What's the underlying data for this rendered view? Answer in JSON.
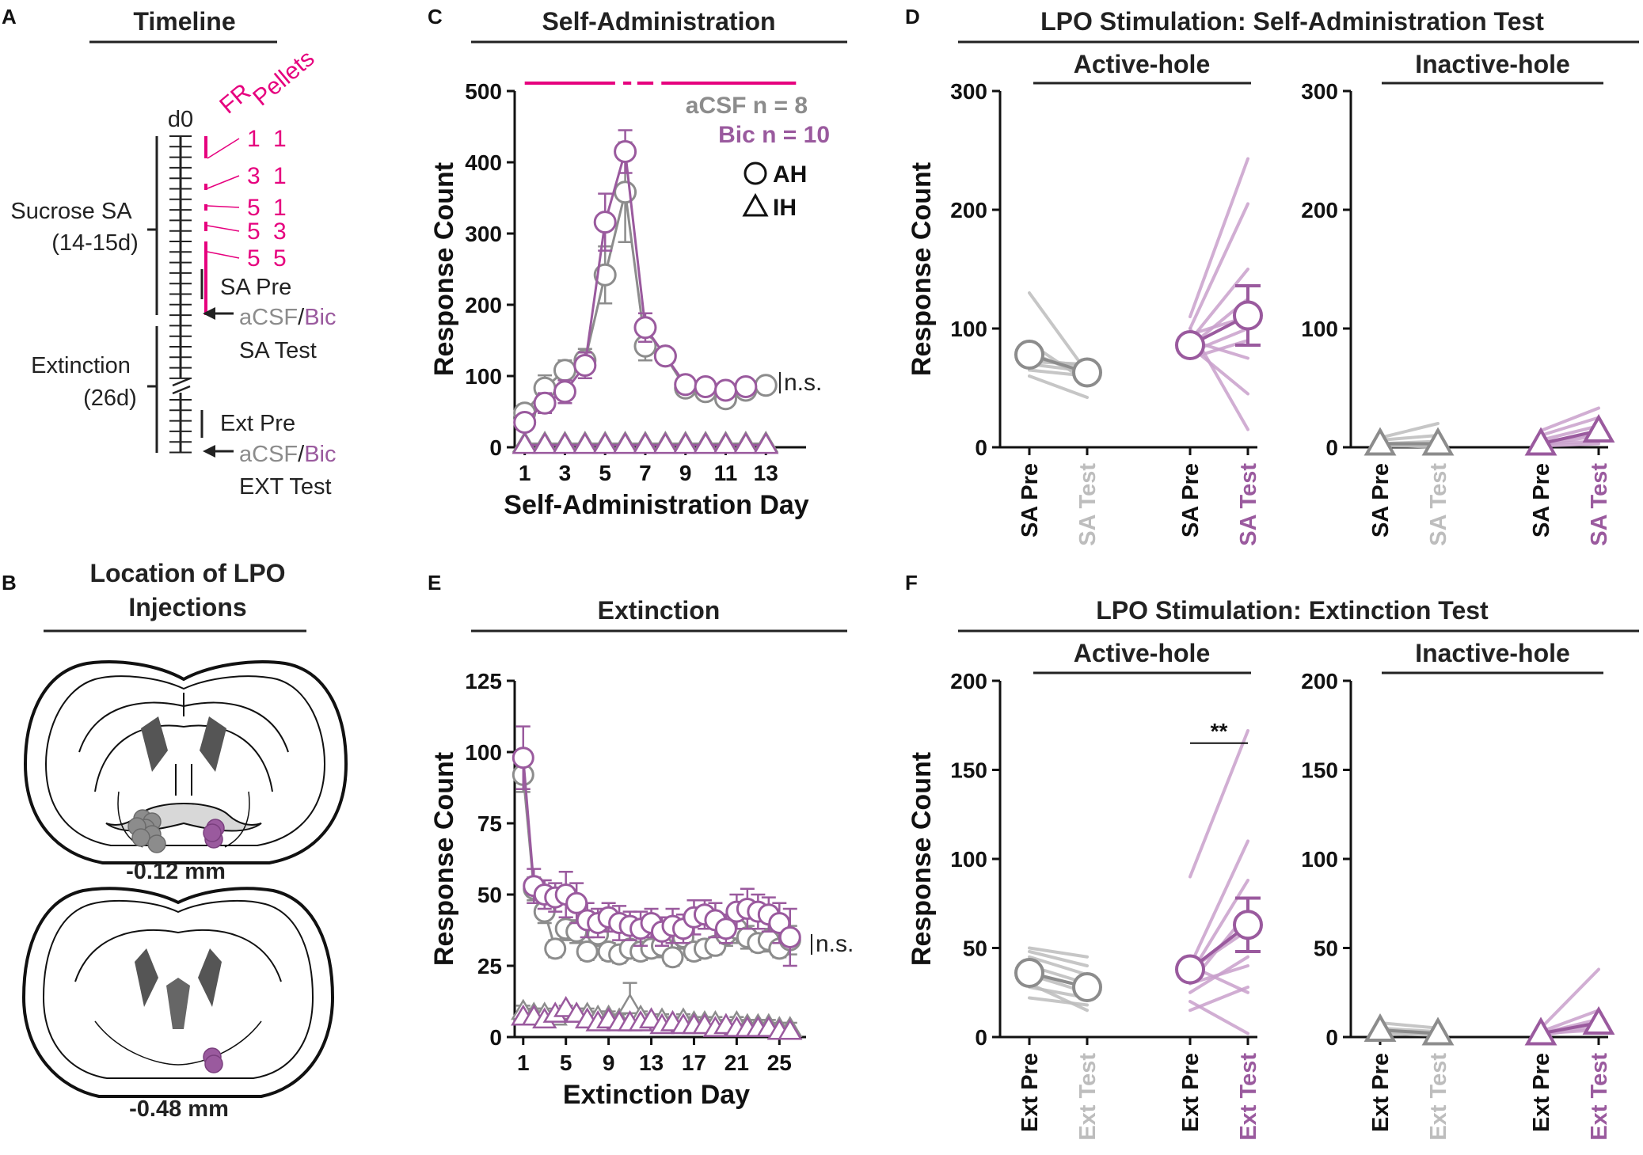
{
  "colors": {
    "acsf": "#8c8c8c",
    "bic": "#9a5a9e",
    "acsf_light": "#bdbdbd",
    "bic_light": "#c9a0cc",
    "magenta": "#e6007e",
    "black": "#111111"
  },
  "panels": {
    "A": {
      "letter": "A",
      "title": "Timeline",
      "d0": "d0",
      "fr_header": "FR",
      "pellets_header": "Pellets",
      "schedule": [
        {
          "fr": "1",
          "pellets": "1"
        },
        {
          "fr": "3",
          "pellets": "1"
        },
        {
          "fr": "5",
          "pellets": "1"
        },
        {
          "fr": "5",
          "pellets": "3"
        },
        {
          "fr": "5",
          "pellets": "5"
        }
      ],
      "sucrose_label": "Sucrose SA",
      "sucrose_duration": "(14-15d)",
      "extinction_label": "Extinction",
      "extinction_duration": "(26d)",
      "sa_pre": "SA Pre",
      "ext_pre": "Ext Pre",
      "acsf": "aCSF",
      "slash": "/",
      "bic": "Bic",
      "sa_test": "SA Test",
      "ext_test": "EXT Test"
    },
    "B": {
      "letter": "B",
      "title_line1": "Location of LPO",
      "title_line2": "Injections",
      "section1": "-0.12 mm",
      "section2": "-0.48 mm"
    },
    "C": {
      "letter": "C",
      "title": "Self-Administration",
      "acsf_n": "aCSF  n = 8",
      "bic_n": "Bic  n = 10",
      "legend_ah": "AH",
      "legend_ih": "IH",
      "ns": "n.s."
    },
    "D": {
      "letter": "D",
      "title": "LPO Stimulation: Self-Administration Test",
      "sub_active": "Active-hole",
      "sub_inactive": "Inactive-hole",
      "pre_label": "SA Pre",
      "test_label": "SA Test"
    },
    "E": {
      "letter": "E",
      "title": "Extinction",
      "ns": "n.s."
    },
    "F": {
      "letter": "F",
      "title": "LPO Stimulation: Extinction Test",
      "sub_active": "Active-hole",
      "sub_inactive": "Inactive-hole",
      "pre_label": "Ext Pre",
      "test_label": "Ext Test",
      "significance": "**"
    }
  },
  "chart_data": [
    {
      "id": "C",
      "type": "line",
      "title": "Self-Administration",
      "xlabel": "Self-Administration Day",
      "ylabel": "Response Count",
      "xlim": [
        0.5,
        15
      ],
      "ylim": [
        0,
        500
      ],
      "yticks": [
        0,
        100,
        200,
        300,
        400,
        500
      ],
      "xticks": [
        1,
        3,
        5,
        7,
        9,
        11,
        13
      ],
      "series": [
        {
          "name": "aCSF AH",
          "group": "acsf",
          "marker": "circle",
          "x": [
            1,
            2,
            3,
            4,
            5,
            6,
            7,
            8,
            9,
            10,
            11,
            12,
            13
          ],
          "values": [
            48,
            83,
            108,
            122,
            242,
            358,
            142,
            128,
            83,
            78,
            68,
            80,
            87
          ],
          "sem": [
            12,
            18,
            14,
            16,
            40,
            70,
            20,
            10,
            8,
            8,
            8,
            8,
            8
          ]
        },
        {
          "name": "Bic AH",
          "group": "bic",
          "marker": "circle",
          "x": [
            1,
            2,
            3,
            4,
            5,
            6,
            7,
            8,
            9,
            10,
            11,
            12
          ],
          "values": [
            35,
            62,
            78,
            115,
            316,
            415,
            168,
            128,
            88,
            85,
            80,
            85
          ],
          "sem": [
            10,
            14,
            16,
            18,
            40,
            30,
            20,
            10,
            8,
            6,
            8,
            8
          ]
        },
        {
          "name": "aCSF IH",
          "group": "acsf",
          "marker": "triangle",
          "x": [
            1,
            2,
            3,
            4,
            5,
            6,
            7,
            8,
            9,
            10,
            11,
            12,
            13
          ],
          "values": [
            5,
            5,
            5,
            5,
            5,
            5,
            5,
            5,
            5,
            5,
            5,
            5,
            5
          ]
        },
        {
          "name": "Bic IH",
          "group": "bic",
          "marker": "triangle",
          "x": [
            1,
            2,
            3,
            4,
            5,
            6,
            7,
            8,
            9,
            10,
            11,
            12,
            13
          ],
          "values": [
            3,
            3,
            3,
            3,
            3,
            3,
            3,
            3,
            3,
            3,
            3,
            3,
            3
          ]
        }
      ],
      "schedule_bar": [
        [
          1,
          5.5
        ],
        [
          5.9,
          6.3
        ],
        [
          6.6,
          7.4
        ],
        [
          7.8,
          14.5
        ]
      ]
    },
    {
      "id": "E",
      "type": "line",
      "title": "Extinction",
      "xlabel": "Extinction Day",
      "ylabel": "Response Count",
      "xlim": [
        0.2,
        27.5
      ],
      "ylim": [
        0,
        125
      ],
      "yticks": [
        0,
        25,
        50,
        75,
        100,
        125
      ],
      "xticks": [
        1,
        5,
        9,
        13,
        17,
        21,
        25
      ],
      "series": [
        {
          "name": "aCSF AH",
          "group": "acsf",
          "marker": "circle",
          "x": [
            1,
            2,
            3,
            4,
            5,
            6,
            7,
            8,
            9,
            10,
            11,
            12,
            13,
            14,
            15,
            16,
            17,
            18,
            19,
            20,
            21,
            22,
            23,
            24,
            25,
            26
          ],
          "values": [
            92,
            52,
            44,
            31,
            38,
            37,
            30,
            36,
            30,
            29,
            31,
            30,
            31,
            32,
            28,
            35,
            30,
            31,
            32,
            36,
            38,
            35,
            33,
            34,
            31,
            34
          ],
          "sem": [
            6,
            4,
            4,
            3,
            4,
            4,
            3,
            4,
            3,
            3,
            3,
            3,
            3,
            4,
            3,
            4,
            3,
            3,
            3,
            4,
            5,
            4,
            3,
            4,
            3,
            5
          ]
        },
        {
          "name": "Bic AH",
          "group": "bic",
          "marker": "circle",
          "x": [
            1,
            2,
            3,
            4,
            5,
            6,
            7,
            8,
            9,
            10,
            11,
            12,
            13,
            14,
            15,
            16,
            17,
            18,
            19,
            20,
            21,
            22,
            23,
            24,
            25,
            26
          ],
          "values": [
            98,
            53,
            50,
            49,
            50,
            47,
            41,
            40,
            42,
            40,
            39,
            38,
            40,
            37,
            39,
            38,
            42,
            43,
            41,
            38,
            44,
            45,
            44,
            43,
            40,
            35
          ],
          "sem": [
            11,
            6,
            5,
            5,
            8,
            7,
            6,
            5,
            5,
            6,
            5,
            6,
            5,
            5,
            6,
            5,
            6,
            5,
            6,
            5,
            6,
            7,
            6,
            6,
            7,
            10
          ]
        },
        {
          "name": "aCSF IH",
          "group": "acsf",
          "marker": "triangle",
          "x": [
            1,
            2,
            3,
            4,
            5,
            6,
            7,
            8,
            9,
            10,
            11,
            12,
            13,
            14,
            15,
            16,
            17,
            18,
            19,
            20,
            21,
            22,
            23,
            24,
            25,
            26
          ],
          "values": [
            9,
            8,
            8,
            7,
            9,
            8,
            8,
            7,
            7,
            6,
            11,
            7,
            6,
            6,
            5,
            6,
            5,
            5,
            5,
            4,
            5,
            4,
            4,
            4,
            3,
            3
          ],
          "sem": [
            2,
            2,
            2,
            2,
            2,
            2,
            2,
            2,
            2,
            2,
            8,
            2,
            2,
            2,
            2,
            2,
            2,
            2,
            2,
            2,
            2,
            2,
            2,
            2,
            2,
            2
          ]
        },
        {
          "name": "Bic IH",
          "group": "bic",
          "marker": "triangle",
          "x": [
            1,
            2,
            3,
            4,
            5,
            6,
            7,
            8,
            9,
            10,
            11,
            12,
            13,
            14,
            15,
            16,
            17,
            18,
            19,
            20,
            21,
            22,
            23,
            24,
            25,
            26
          ],
          "values": [
            7,
            7,
            6,
            8,
            10,
            8,
            6,
            5,
            6,
            5,
            5,
            5,
            6,
            4,
            5,
            4,
            4,
            4,
            3,
            4,
            3,
            3,
            3,
            3,
            2,
            2
          ]
        }
      ]
    },
    {
      "id": "D-active",
      "type": "line",
      "title": "Active-hole",
      "ylabel": "Response Count",
      "ylim": [
        0,
        300
      ],
      "yticks": [
        0,
        100,
        200,
        300
      ],
      "categories": [
        "SA Pre",
        "SA Test",
        "SA Pre",
        "SA Test"
      ],
      "groups": [
        {
          "group": "acsf",
          "pre": 78,
          "test": 63,
          "individual": [
            [
              130,
              63
            ],
            [
              88,
              55
            ],
            [
              80,
              60
            ],
            [
              72,
              70
            ],
            [
              75,
              68
            ],
            [
              70,
              64
            ],
            [
              65,
              60
            ],
            [
              60,
              42
            ]
          ]
        },
        {
          "group": "bic",
          "pre": 86,
          "test": 111,
          "test_sem": 25,
          "individual": [
            [
              110,
              243
            ],
            [
              100,
              205
            ],
            [
              90,
              150
            ],
            [
              85,
              125
            ],
            [
              95,
              110
            ],
            [
              80,
              100
            ],
            [
              75,
              90
            ],
            [
              90,
              75
            ],
            [
              85,
              45
            ],
            [
              100,
              15
            ]
          ]
        }
      ]
    },
    {
      "id": "D-inactive",
      "type": "line",
      "title": "Inactive-hole",
      "ylim": [
        0,
        300
      ],
      "yticks": [
        0,
        100,
        200,
        300
      ],
      "categories": [
        "SA Pre",
        "SA Test",
        "SA Pre",
        "SA Test"
      ],
      "groups": [
        {
          "group": "acsf",
          "pre": 3,
          "test": 3,
          "individual": [
            [
              8,
              20
            ],
            [
              6,
              10
            ],
            [
              3,
              5
            ],
            [
              2,
              2
            ],
            [
              1,
              1
            ],
            [
              2,
              0
            ]
          ]
        },
        {
          "group": "bic",
          "pre": 3,
          "test": 14,
          "individual": [
            [
              14,
              33
            ],
            [
              10,
              25
            ],
            [
              6,
              18
            ],
            [
              4,
              12
            ],
            [
              2,
              10
            ],
            [
              3,
              5
            ],
            [
              1,
              3
            ]
          ]
        }
      ]
    },
    {
      "id": "F-active",
      "type": "line",
      "title": "Active-hole",
      "ylabel": "Response Count",
      "ylim": [
        0,
        200
      ],
      "yticks": [
        0,
        50,
        100,
        150,
        200
      ],
      "categories": [
        "Ext Pre",
        "Ext Test",
        "Ext Pre",
        "Ext Test"
      ],
      "groups": [
        {
          "group": "acsf",
          "pre": 36,
          "test": 28,
          "individual": [
            [
              50,
              45
            ],
            [
              48,
              40
            ],
            [
              45,
              35
            ],
            [
              40,
              30
            ],
            [
              35,
              25
            ],
            [
              28,
              22
            ],
            [
              22,
              18
            ],
            [
              30,
              15
            ]
          ]
        },
        {
          "group": "bic",
          "pre": 38,
          "test": 63,
          "test_sem": 15,
          "individual": [
            [
              90,
              172
            ],
            [
              40,
              110
            ],
            [
              35,
              88
            ],
            [
              30,
              70
            ],
            [
              38,
              60
            ],
            [
              25,
              45
            ],
            [
              30,
              40
            ],
            [
              15,
              28
            ],
            [
              40,
              25
            ],
            [
              20,
              2
            ]
          ]
        }
      ],
      "significance": "**"
    },
    {
      "id": "F-inactive",
      "type": "line",
      "title": "Inactive-hole",
      "ylim": [
        0,
        200
      ],
      "yticks": [
        0,
        50,
        100,
        150,
        200
      ],
      "categories": [
        "Ext Pre",
        "Ext Test",
        "Ext Pre",
        "Ext Test"
      ],
      "groups": [
        {
          "group": "acsf",
          "pre": 4,
          "test": 2,
          "individual": [
            [
              8,
              5
            ],
            [
              5,
              3
            ],
            [
              3,
              2
            ],
            [
              2,
              1
            ]
          ]
        },
        {
          "group": "bic",
          "pre": 2,
          "test": 8,
          "individual": [
            [
              5,
              38
            ],
            [
              3,
              15
            ],
            [
              2,
              10
            ],
            [
              1,
              6
            ],
            [
              2,
              4
            ]
          ]
        }
      ]
    }
  ]
}
